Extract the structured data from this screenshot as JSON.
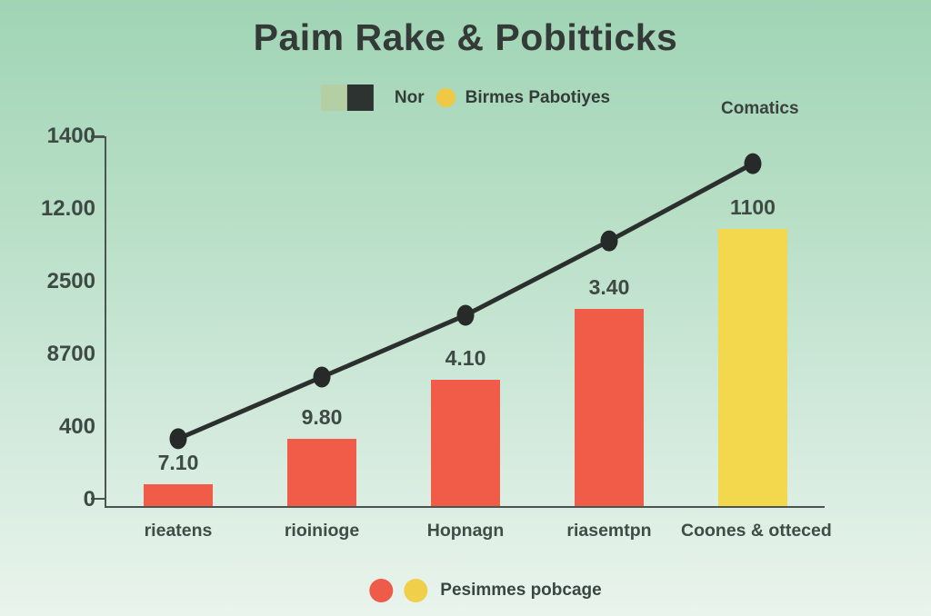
{
  "title": "Paim Rake & Pobitticks",
  "header_legend": {
    "swatch_green_color": "#b4cfa3",
    "swatch_dark_color": "#2d3331",
    "label_1": "Nor",
    "dot_yellow_color": "#efc943",
    "label_2": "Birmes Pabotiyes"
  },
  "corner_label": "Comatics",
  "footer_legend": {
    "dot_red_color": "#ee5c49",
    "dot_yellow_color": "#f0d04a",
    "label": "Pesimmes pobcage"
  },
  "chart_data": {
    "type": "combo",
    "title": "Paim Rake & Pobitticks",
    "categories": [
      "rieatens",
      "rioinioge",
      "Hopnagn",
      "riasemtpn",
      "Coones & otteced"
    ],
    "y_tick_labels_top_to_bottom": [
      "1400",
      "12.00",
      "2500",
      "8700",
      "400",
      "0"
    ],
    "series": [
      {
        "name": "bars",
        "type": "bar",
        "value_labels": [
          "7.10",
          "9.80",
          "4.10",
          "3.40",
          "1100"
        ],
        "height_fractions": [
          0.059,
          0.182,
          0.342,
          0.533,
          0.75
        ],
        "colors": [
          "#f05c47",
          "#f05c47",
          "#f05c47",
          "#f05c47",
          "#f3d74c"
        ]
      },
      {
        "name": "trend-line",
        "type": "line",
        "height_fractions": [
          0.182,
          0.349,
          0.516,
          0.717,
          0.926
        ],
        "color": "#2b302e",
        "marker_color": "#262b29"
      }
    ],
    "legend_top_entries": [
      "Nor",
      "Birmes Pabotiyes"
    ],
    "legend_bottom_entries": [
      "Pesimmes pobcage"
    ],
    "grid": false,
    "axis_color": "#4a554f"
  }
}
